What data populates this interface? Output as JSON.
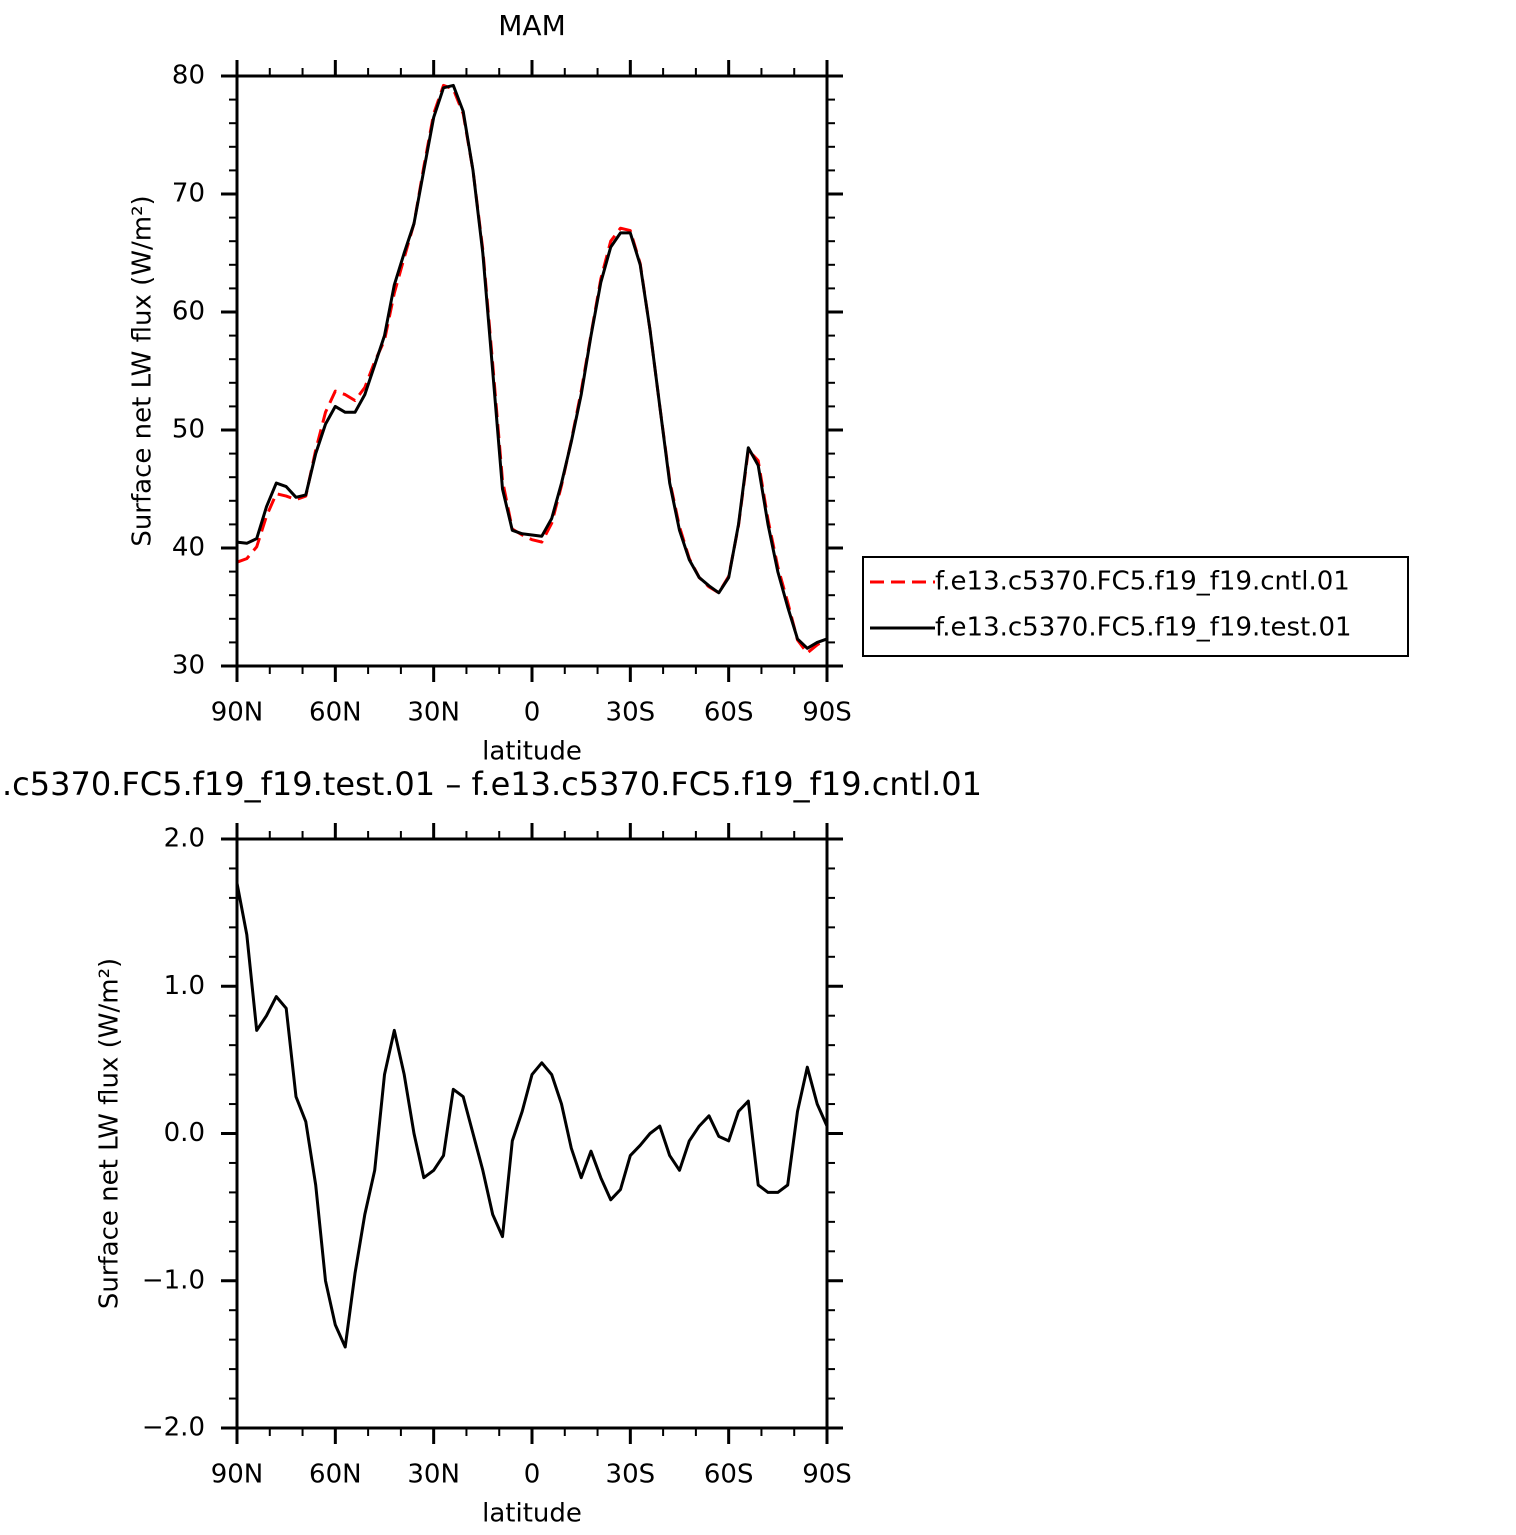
{
  "chart_data": [
    {
      "type": "line",
      "title": "MAM",
      "x_label": "latitude",
      "y_label": "Surface net LW flux (W/m²)",
      "x": [
        90,
        87,
        84,
        81,
        78,
        75,
        72,
        69,
        66,
        63,
        60,
        57,
        54,
        51,
        48,
        45,
        42,
        39,
        36,
        33,
        30,
        27,
        24,
        21,
        18,
        15,
        12,
        9,
        6,
        3,
        0,
        -3,
        -6,
        -9,
        -12,
        -15,
        -18,
        -21,
        -24,
        -27,
        -30,
        -33,
        -36,
        -39,
        -42,
        -45,
        -48,
        -51,
        -54,
        -57,
        -60,
        -63,
        -66,
        -69,
        -72,
        -75,
        -78,
        -81,
        -84,
        -87,
        -90
      ],
      "series": [
        {
          "name": "f.e13.c5370.FC5.f19_f19.cntl.01",
          "color": "#ff0000",
          "line_style": "dashed",
          "values": [
            38.8,
            39.1,
            40.1,
            42.7,
            44.6,
            44.4,
            44.1,
            44.4,
            48.3,
            51.5,
            53.3,
            53.0,
            52.5,
            53.6,
            55.8,
            57.6,
            61.6,
            64.6,
            67.5,
            72.3,
            76.8,
            79.2,
            78.9,
            76.8,
            72.0,
            65.3,
            55.6,
            45.7,
            41.6,
            41.1,
            40.7,
            40.5,
            42.1,
            45.3,
            49.1,
            53.3,
            58.1,
            62.8,
            66.0,
            67.1,
            66.9,
            64.1,
            58.5,
            52.0,
            45.7,
            41.8,
            39.1,
            37.5,
            36.7,
            36.2,
            37.6,
            41.9,
            48.3,
            47.4,
            42.4,
            38.4,
            35.4,
            32.2,
            31.1,
            31.8,
            32.3
          ]
        },
        {
          "name": "f.e13.c5370.FC5.f19_f19.test.01",
          "color": "#000000",
          "line_style": "solid",
          "values": [
            40.5,
            40.4,
            40.8,
            43.5,
            45.5,
            45.2,
            44.3,
            44.5,
            48.0,
            50.5,
            52.0,
            51.5,
            51.5,
            53.0,
            55.5,
            58.0,
            62.3,
            65.0,
            67.5,
            72.0,
            76.5,
            79.0,
            79.2,
            77.0,
            72.0,
            65.0,
            55.0,
            45.0,
            41.5,
            41.2,
            41.1,
            41.0,
            42.5,
            45.5,
            49.0,
            53.0,
            58.0,
            62.5,
            65.5,
            66.7,
            66.7,
            64.0,
            58.5,
            52.0,
            45.5,
            41.5,
            39.0,
            37.5,
            36.8,
            36.2,
            37.5,
            42.0,
            48.5,
            47.0,
            42.0,
            38.0,
            35.0,
            32.3,
            31.5,
            32.0,
            32.3
          ]
        }
      ],
      "xlim": [
        90,
        -90
      ],
      "xticks": [
        {
          "value": 90,
          "label": "90N"
        },
        {
          "value": 60,
          "label": "60N"
        },
        {
          "value": 30,
          "label": "30N"
        },
        0,
        {
          "value": -30,
          "label": "30S"
        },
        {
          "value": -60,
          "label": "60S"
        },
        {
          "value": -90,
          "label": "90S"
        }
      ],
      "ylim": [
        30,
        80
      ],
      "yticks": [
        30,
        40,
        50,
        60,
        70,
        80
      ],
      "legend": "right"
    },
    {
      "type": "line",
      "title": ".c5370.FC5.f19_f19.test.01 – f.e13.c5370.FC5.f19_f19.cntl.01",
      "x_label": "latitude",
      "y_label": "Surface net LW flux (W/m²)",
      "x": [
        90,
        87,
        84,
        81,
        78,
        75,
        72,
        69,
        66,
        63,
        60,
        57,
        54,
        51,
        48,
        45,
        42,
        39,
        36,
        33,
        30,
        27,
        24,
        21,
        18,
        15,
        12,
        9,
        6,
        3,
        0,
        -3,
        -6,
        -9,
        -12,
        -15,
        -18,
        -21,
        -24,
        -27,
        -30,
        -33,
        -36,
        -39,
        -42,
        -45,
        -48,
        -51,
        -54,
        -57,
        -60,
        -63,
        -66,
        -69,
        -72,
        -75,
        -78,
        -81,
        -84,
        -87,
        -90
      ],
      "series": [
        {
          "color": "#000000",
          "line_style": "solid",
          "values": [
            1.7,
            1.35,
            0.7,
            0.8,
            0.93,
            0.85,
            0.25,
            0.08,
            -0.35,
            -1.0,
            -1.3,
            -1.45,
            -0.95,
            -0.55,
            -0.25,
            0.4,
            0.7,
            0.4,
            0.0,
            -0.3,
            -0.25,
            -0.15,
            0.3,
            0.25,
            0.0,
            -0.25,
            -0.55,
            -0.7,
            -0.05,
            0.15,
            0.4,
            0.48,
            0.4,
            0.2,
            -0.1,
            -0.3,
            -0.12,
            -0.3,
            -0.45,
            -0.38,
            -0.15,
            -0.08,
            0.0,
            0.05,
            -0.15,
            -0.25,
            -0.05,
            0.05,
            0.12,
            -0.02,
            -0.05,
            0.15,
            0.22,
            -0.35,
            -0.4,
            -0.4,
            -0.35,
            0.15,
            0.45,
            0.2,
            0.05
          ]
        }
      ],
      "xlim": [
        90,
        -90
      ],
      "xticks": [
        {
          "value": 90,
          "label": "90N"
        },
        {
          "value": 60,
          "label": "60N"
        },
        {
          "value": 30,
          "label": "30N"
        },
        0,
        {
          "value": -30,
          "label": "30S"
        },
        {
          "value": -60,
          "label": "60S"
        },
        {
          "value": -90,
          "label": "90S"
        }
      ],
      "ylim": [
        -2,
        2
      ],
      "yticks": [
        {
          "value": -2,
          "label": "−2.0"
        },
        {
          "value": -1,
          "label": "−1.0"
        },
        {
          "value": 0,
          "label": "0.0"
        },
        {
          "value": 1,
          "label": "1.0"
        },
        {
          "value": 2,
          "label": "2.0"
        }
      ]
    }
  ]
}
